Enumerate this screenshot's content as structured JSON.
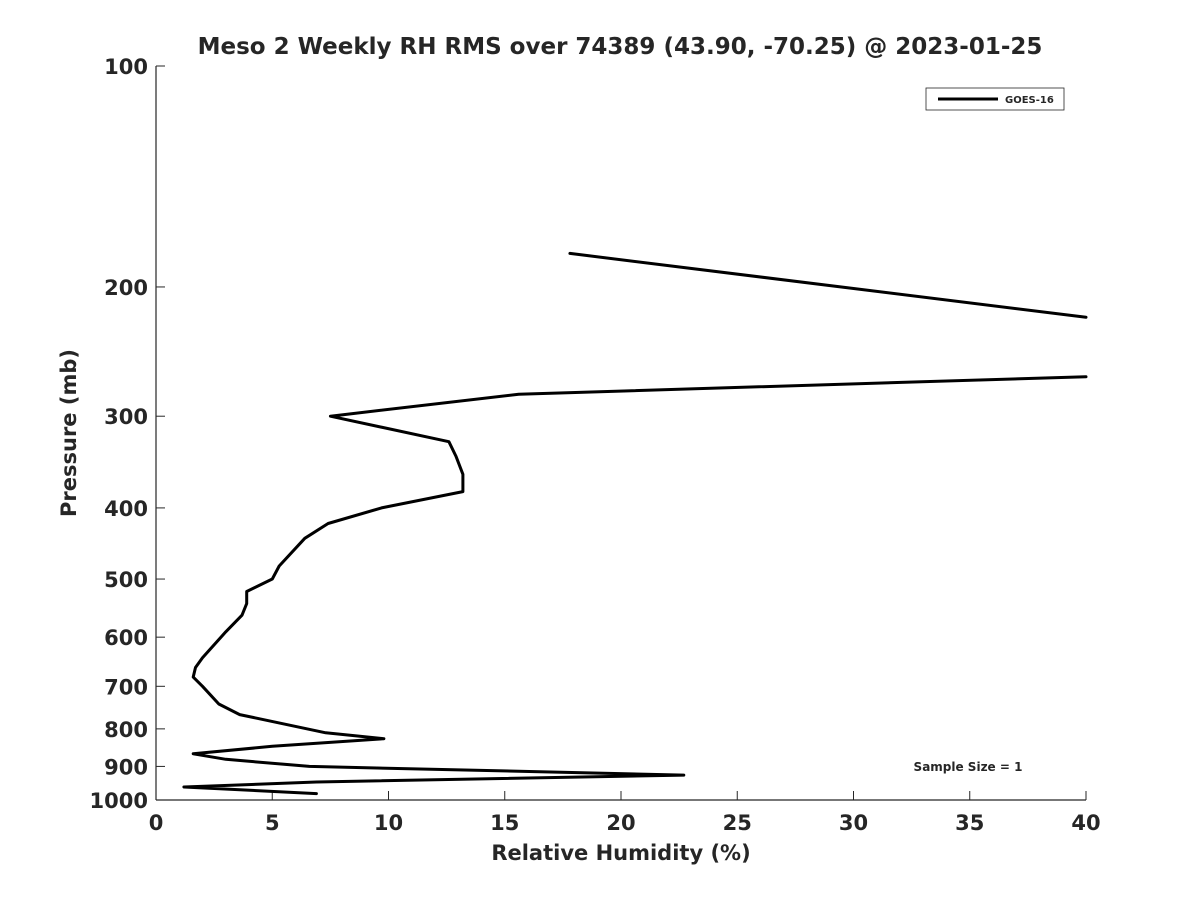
{
  "chart_data": {
    "type": "line",
    "title": "Meso 2 Weekly RH RMS over 74389 (43.90, -70.25) @ 2023-01-25",
    "xlabel": "Relative Humidity (%)",
    "ylabel": "Pressure (mb)",
    "xlim": [
      0,
      40
    ],
    "ylim": [
      1000,
      100
    ],
    "y_scale": "log",
    "y_reversed": true,
    "x_ticks": [
      0,
      5,
      10,
      15,
      20,
      25,
      30,
      35,
      40
    ],
    "x_tick_labels": [
      "0",
      "5",
      "10",
      "15",
      "20",
      "25",
      "30",
      "35",
      "40"
    ],
    "y_ticks": [
      100,
      200,
      300,
      400,
      500,
      600,
      700,
      800,
      900,
      1000
    ],
    "y_tick_labels": [
      "100",
      "200",
      "300",
      "400",
      "500",
      "600",
      "700",
      "800",
      "900",
      "1000"
    ],
    "grid": false,
    "legend_position": "top-right",
    "annotation": "Sample Size = 1",
    "series": [
      {
        "name": "GOES-16",
        "color": "#000000",
        "segments": [
          [
            {
              "x": 17.8,
              "y": 180
            },
            {
              "x": 40.0,
              "y": 220
            }
          ],
          [
            {
              "x": 40.0,
              "y": 265
            },
            {
              "x": 15.6,
              "y": 280
            },
            {
              "x": 7.5,
              "y": 300
            },
            {
              "x": 12.6,
              "y": 325
            },
            {
              "x": 12.9,
              "y": 340
            },
            {
              "x": 13.2,
              "y": 360
            },
            {
              "x": 13.2,
              "y": 380
            },
            {
              "x": 9.7,
              "y": 400
            },
            {
              "x": 7.4,
              "y": 420
            },
            {
              "x": 6.4,
              "y": 440
            },
            {
              "x": 5.3,
              "y": 480
            },
            {
              "x": 5.0,
              "y": 500
            },
            {
              "x": 3.9,
              "y": 520
            },
            {
              "x": 3.9,
              "y": 540
            },
            {
              "x": 3.7,
              "y": 560
            },
            {
              "x": 3.0,
              "y": 590
            },
            {
              "x": 2.0,
              "y": 640
            },
            {
              "x": 1.7,
              "y": 660
            },
            {
              "x": 1.6,
              "y": 680
            },
            {
              "x": 2.0,
              "y": 700
            },
            {
              "x": 2.7,
              "y": 740
            },
            {
              "x": 3.6,
              "y": 765
            },
            {
              "x": 7.3,
              "y": 810
            },
            {
              "x": 9.8,
              "y": 825
            },
            {
              "x": 5.0,
              "y": 845
            },
            {
              "x": 1.6,
              "y": 865
            },
            {
              "x": 3.0,
              "y": 880
            },
            {
              "x": 6.6,
              "y": 900
            },
            {
              "x": 22.7,
              "y": 925
            },
            {
              "x": 6.9,
              "y": 945
            },
            {
              "x": 1.2,
              "y": 960
            },
            {
              "x": 6.9,
              "y": 980
            }
          ]
        ]
      }
    ]
  }
}
